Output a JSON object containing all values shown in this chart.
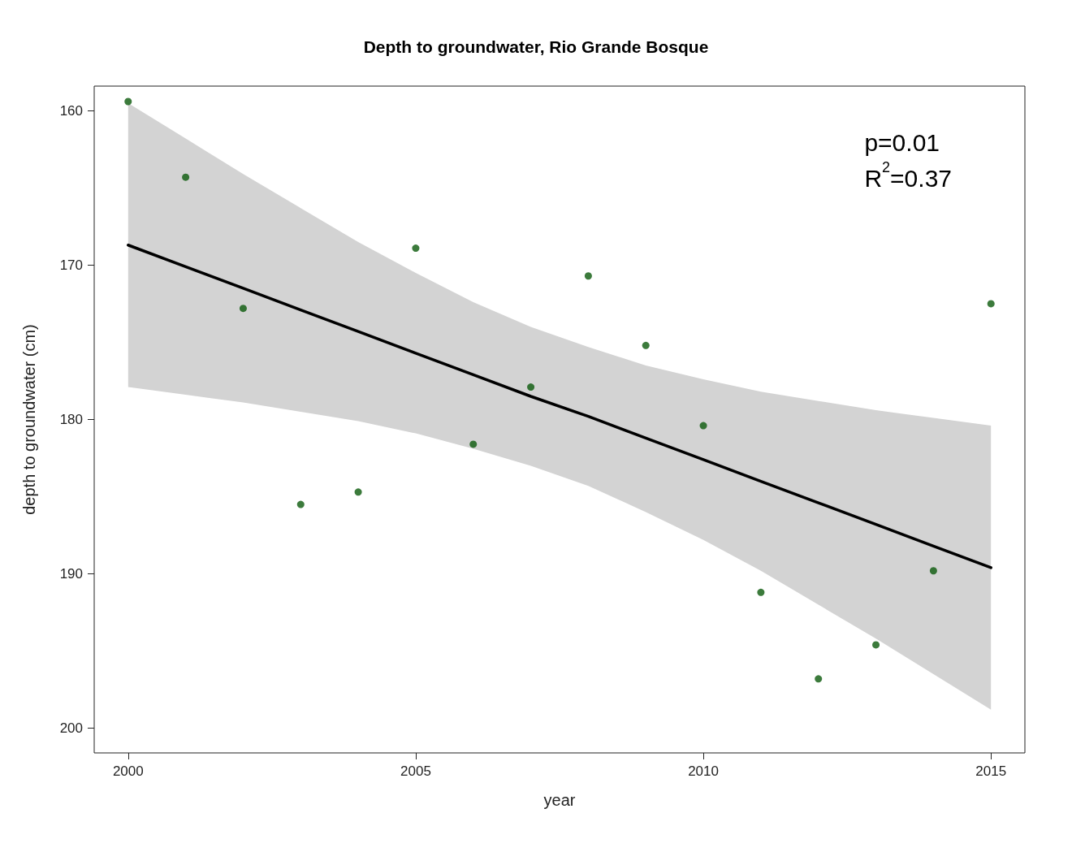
{
  "chart_data": {
    "type": "scatter",
    "title": "Depth to groundwater, Rio Grande Bosque",
    "xlabel": "year",
    "ylabel": "depth to groundwater (cm)",
    "annotations": [
      "p=0.01",
      "R$^{2}$=0.37"
    ],
    "x": [
      2000,
      2001,
      2002,
      2003,
      2004,
      2005,
      2006,
      2007,
      2008,
      2009,
      2010,
      2011,
      2012,
      2013,
      2014,
      2015
    ],
    "series": [
      {
        "color": "#0b5a0b",
        "marker": "circle",
        "values": [
          159.4,
          164.3,
          172.8,
          185.5,
          184.7,
          168.9,
          181.6,
          177.9,
          170.7,
          175.2,
          180.4,
          191.2,
          196.8,
          194.6,
          189.8,
          172.5
        ]
      },
      {
        "type": "line",
        "color": "#000000",
        "marker": "none",
        "line_style": "solid",
        "x": [
          2000,
          2001,
          2002,
          2003,
          2004,
          2005,
          2006,
          2007,
          2008,
          2009,
          2010,
          2011,
          2012,
          2013,
          2014,
          2015
        ],
        "values": [
          168.7,
          170.1,
          171.5,
          172.9,
          174.3,
          175.7,
          177.1,
          178.5,
          179.8,
          181.2,
          182.6,
          184.0,
          185.4,
          186.8,
          188.2,
          189.6
        ],
        "lower": [
          159.5,
          161.8,
          164.1,
          166.3,
          168.5,
          170.5,
          172.4,
          174.0,
          175.3,
          176.5,
          177.4,
          178.2,
          178.8,
          179.4,
          179.9,
          180.4
        ],
        "upper": [
          177.9,
          178.4,
          178.9,
          179.5,
          180.1,
          180.9,
          181.9,
          183.0,
          184.3,
          186.0,
          187.8,
          189.8,
          192.0,
          194.2,
          196.5,
          198.8
        ]
      }
    ],
    "xlim": [
      1999.41,
      2015.59
    ],
    "xticks": [
      2000,
      2005,
      2010,
      2015
    ],
    "ylim": [
      201.6,
      158.4
    ],
    "yticks": [
      160,
      170,
      180,
      190,
      200
    ],
    "grid": false
  }
}
